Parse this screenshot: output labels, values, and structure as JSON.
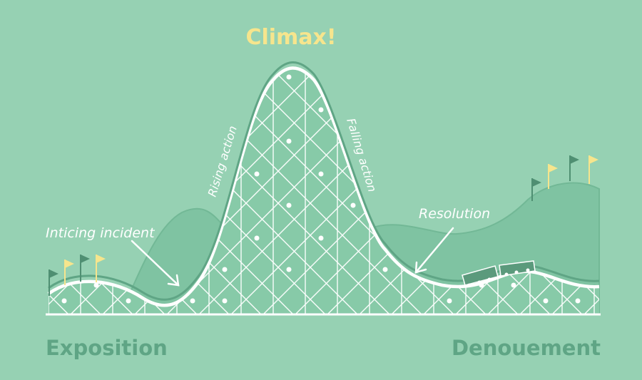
{
  "diagram": {
    "title": "Climax!",
    "labels": {
      "inciting_incident": "Inticing incident",
      "rising_action": "Rising action",
      "falling_action": "Falling action",
      "resolution": "Resolution",
      "exposition": "Exposition",
      "denouement": "Denouement"
    },
    "colors": {
      "background": "#96d1b3",
      "hills": "#7fc3a2",
      "hills_outline": "#6fb693",
      "track": "#ffffff",
      "track_fill": "#86c9a7",
      "title": "#f6e58d",
      "bottom_labels": "#5fa585",
      "flag_dark": "#4f8f72",
      "flag_yellow": "#f6e58d",
      "train": "#5b9a7c"
    }
  }
}
